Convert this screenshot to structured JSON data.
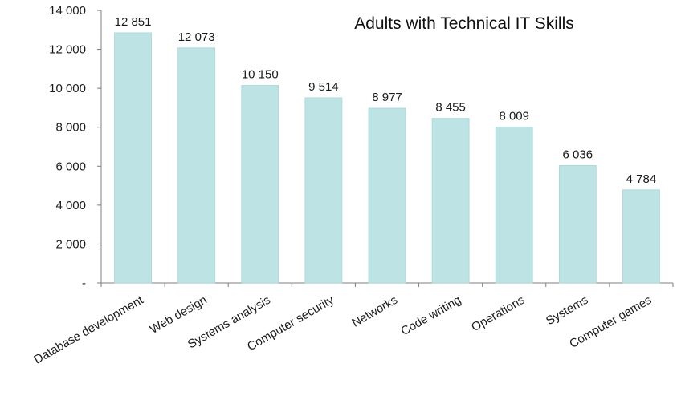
{
  "chart_data": {
    "type": "bar",
    "title": "Adults with Technical IT Skills",
    "categories": [
      "Database development",
      "Web design",
      "Systems analysis",
      "Computer security",
      "Networks",
      "Code writing",
      "Operations",
      "Systems",
      "Computer games"
    ],
    "values": [
      12851,
      12073,
      10150,
      9514,
      8977,
      8455,
      8009,
      6036,
      4784
    ],
    "data_labels": [
      "12 851",
      "12 073",
      "10 150",
      "9 514",
      "8 977",
      "8 455",
      "8 009",
      "6 036",
      "4 784"
    ],
    "xlabel": "",
    "ylabel": "",
    "ylim": [
      0,
      14000
    ],
    "yticks": [
      0,
      2000,
      4000,
      6000,
      8000,
      10000,
      12000,
      14000
    ],
    "ytick_labels": [
      "-",
      "2 000",
      "4 000",
      "6 000",
      "8 000",
      "10 000",
      "12 000",
      "14 000"
    ],
    "grid": false,
    "legend": "none",
    "colors": {
      "bar_fill": "#bde3e5",
      "bar_edge": "#a8d6d9",
      "axis": "#7f7f7f",
      "text": "#1a1a1a"
    }
  }
}
